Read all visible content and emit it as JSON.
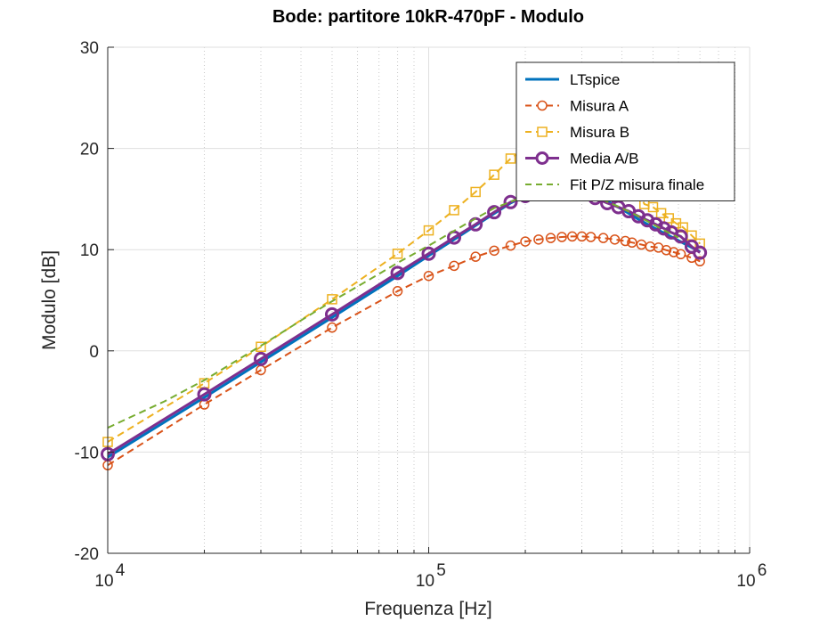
{
  "chart_data": {
    "type": "line",
    "title": "Bode: partitore 10kR-470pF - Modulo",
    "xlabel": "Frequenza [Hz]",
    "ylabel": "Modulo [dB]",
    "x_scale": "log",
    "xlim": [
      10000,
      1000000
    ],
    "ylim": [
      -20,
      30
    ],
    "x_ticks": [
      10000,
      100000,
      1000000
    ],
    "x_tick_labels": [
      {
        "base": "10",
        "exp": "4"
      },
      {
        "base": "10",
        "exp": "5"
      },
      {
        "base": "10",
        "exp": "6"
      }
    ],
    "y_ticks": [
      -20,
      -10,
      0,
      10,
      20,
      30
    ],
    "y_tick_labels": [
      "-20",
      "-10",
      "0",
      "10",
      "20",
      "30"
    ],
    "grid": true,
    "minor_grid": true,
    "legend_position": "top-right",
    "series": [
      {
        "name": "LTspice",
        "color": "#0072BD",
        "line": "solid",
        "marker": "none",
        "points": [
          [
            10000,
            -10.5
          ],
          [
            20000,
            -4.6
          ],
          [
            30000,
            -1.1
          ],
          [
            50000,
            3.3
          ],
          [
            80000,
            7.4
          ],
          [
            100000,
            9.4
          ],
          [
            120000,
            11.0
          ],
          [
            150000,
            13.0
          ],
          [
            180000,
            14.6
          ],
          [
            220000,
            16.0
          ],
          [
            260000,
            16.3
          ],
          [
            300000,
            15.8
          ],
          [
            350000,
            15.0
          ],
          [
            400000,
            14.0
          ],
          [
            450000,
            13.0
          ],
          [
            500000,
            12.2
          ],
          [
            600000,
            10.9
          ],
          [
            700000,
            9.8
          ]
        ]
      },
      {
        "name": "Misura A",
        "color": "#D95319",
        "line": "dashed",
        "marker": "circle",
        "points": [
          [
            10000,
            -11.3
          ],
          [
            20000,
            -5.3
          ],
          [
            30000,
            -1.9
          ],
          [
            50000,
            2.3
          ],
          [
            80000,
            5.9
          ],
          [
            100000,
            7.4
          ],
          [
            120000,
            8.4
          ],
          [
            140000,
            9.3
          ],
          [
            160000,
            9.9
          ],
          [
            180000,
            10.4
          ],
          [
            200000,
            10.8
          ],
          [
            220000,
            11.0
          ],
          [
            240000,
            11.15
          ],
          [
            260000,
            11.25
          ],
          [
            280000,
            11.3
          ],
          [
            300000,
            11.3
          ],
          [
            320000,
            11.25
          ],
          [
            350000,
            11.15
          ],
          [
            380000,
            11.0
          ],
          [
            410000,
            10.85
          ],
          [
            430000,
            10.7
          ],
          [
            460000,
            10.5
          ],
          [
            490000,
            10.3
          ],
          [
            520000,
            10.2
          ],
          [
            550000,
            9.95
          ],
          [
            580000,
            9.75
          ],
          [
            610000,
            9.55
          ],
          [
            660000,
            9.2
          ],
          [
            700000,
            8.85
          ]
        ]
      },
      {
        "name": "Misura B",
        "color": "#EDB120",
        "line": "dashed",
        "marker": "square",
        "points": [
          [
            10000,
            -9.0
          ],
          [
            20000,
            -3.2
          ],
          [
            30000,
            0.4
          ],
          [
            50000,
            5.1
          ],
          [
            80000,
            9.6
          ],
          [
            100000,
            11.9
          ],
          [
            120000,
            13.9
          ],
          [
            140000,
            15.7
          ],
          [
            160000,
            17.4
          ],
          [
            180000,
            19.0
          ],
          [
            200000,
            20.0
          ],
          [
            220000,
            20.3
          ],
          [
            250000,
            20.1
          ],
          [
            300000,
            19.3
          ],
          [
            350000,
            18.2
          ],
          [
            400000,
            17.0
          ],
          [
            450000,
            15.7
          ],
          [
            470000,
            14.5
          ],
          [
            500000,
            14.2
          ],
          [
            530000,
            13.6
          ],
          [
            560000,
            13.1
          ],
          [
            590000,
            12.6
          ],
          [
            620000,
            12.2
          ],
          [
            660000,
            11.4
          ],
          [
            700000,
            10.6
          ]
        ]
      },
      {
        "name": "Media A/B",
        "color": "#7E2F8E",
        "line": "solid",
        "marker": "circle",
        "points": [
          [
            10000,
            -10.2
          ],
          [
            20000,
            -4.3
          ],
          [
            30000,
            -0.8
          ],
          [
            50000,
            3.6
          ],
          [
            80000,
            7.7
          ],
          [
            100000,
            9.6
          ],
          [
            120000,
            11.2
          ],
          [
            140000,
            12.5
          ],
          [
            160000,
            13.7
          ],
          [
            180000,
            14.7
          ],
          [
            200000,
            15.3
          ],
          [
            230000,
            15.6
          ],
          [
            260000,
            15.8
          ],
          [
            300000,
            15.6
          ],
          [
            330000,
            15.1
          ],
          [
            360000,
            14.6
          ],
          [
            390000,
            14.2
          ],
          [
            420000,
            13.8
          ],
          [
            450000,
            13.3
          ],
          [
            480000,
            12.9
          ],
          [
            510000,
            12.5
          ],
          [
            540000,
            12.1
          ],
          [
            570000,
            11.7
          ],
          [
            610000,
            11.3
          ],
          [
            660000,
            10.3
          ],
          [
            700000,
            9.7
          ]
        ]
      },
      {
        "name": "Fit P/Z misura finale",
        "color": "#77AC30",
        "line": "dashed",
        "marker": "none",
        "points": [
          [
            10000,
            -7.6
          ],
          [
            15000,
            -5.0
          ],
          [
            20000,
            -2.9
          ],
          [
            30000,
            0.5
          ],
          [
            40000,
            3.0
          ],
          [
            50000,
            4.9
          ],
          [
            70000,
            7.6
          ],
          [
            80000,
            8.7
          ],
          [
            100000,
            10.4
          ],
          [
            130000,
            12.5
          ],
          [
            160000,
            14.1
          ],
          [
            200000,
            15.3
          ],
          [
            250000,
            15.7
          ],
          [
            300000,
            15.5
          ],
          [
            350000,
            14.9
          ],
          [
            400000,
            14.1
          ],
          [
            450000,
            13.3
          ],
          [
            500000,
            12.5
          ],
          [
            550000,
            11.8
          ],
          [
            600000,
            11.2
          ]
        ]
      }
    ]
  }
}
